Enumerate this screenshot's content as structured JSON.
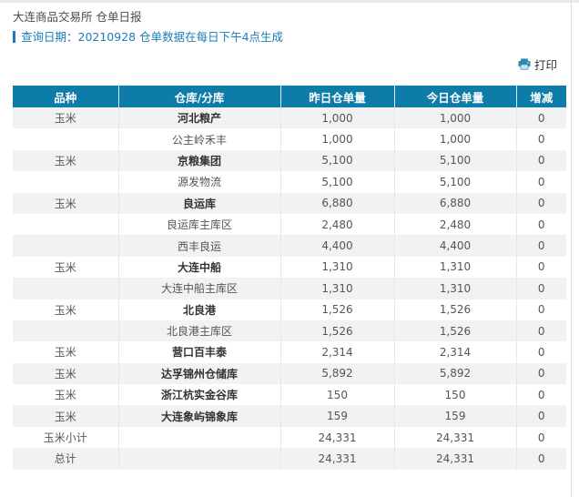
{
  "page": {
    "title": "大连商品交易所 仓单日报",
    "query_line": "查询日期：20210928 仓单数据在每日下午4点生成",
    "print_label": "打印"
  },
  "table": {
    "columns": [
      "品种",
      "仓库/分库",
      "昨日仓单量",
      "今日仓单量",
      "增减"
    ],
    "rows": [
      {
        "variety": "玉米",
        "warehouse": "河北粮产",
        "main": true,
        "yesterday": "1,000",
        "today": "1,000",
        "change": "0"
      },
      {
        "variety": "",
        "warehouse": "公主岭禾丰",
        "main": false,
        "yesterday": "1,000",
        "today": "1,000",
        "change": "0"
      },
      {
        "variety": "玉米",
        "warehouse": "京粮集团",
        "main": true,
        "yesterday": "5,100",
        "today": "5,100",
        "change": "0"
      },
      {
        "variety": "",
        "warehouse": "源发物流",
        "main": false,
        "yesterday": "5,100",
        "today": "5,100",
        "change": "0"
      },
      {
        "variety": "玉米",
        "warehouse": "良运库",
        "main": true,
        "yesterday": "6,880",
        "today": "6,880",
        "change": "0"
      },
      {
        "variety": "",
        "warehouse": "良运库主库区",
        "main": false,
        "yesterday": "2,480",
        "today": "2,480",
        "change": "0"
      },
      {
        "variety": "",
        "warehouse": "西丰良运",
        "main": false,
        "yesterday": "4,400",
        "today": "4,400",
        "change": "0"
      },
      {
        "variety": "玉米",
        "warehouse": "大连中船",
        "main": true,
        "yesterday": "1,310",
        "today": "1,310",
        "change": "0"
      },
      {
        "variety": "",
        "warehouse": "大连中船主库区",
        "main": false,
        "yesterday": "1,310",
        "today": "1,310",
        "change": "0"
      },
      {
        "variety": "玉米",
        "warehouse": "北良港",
        "main": true,
        "yesterday": "1,526",
        "today": "1,526",
        "change": "0"
      },
      {
        "variety": "",
        "warehouse": "北良港主库区",
        "main": false,
        "yesterday": "1,526",
        "today": "1,526",
        "change": "0"
      },
      {
        "variety": "玉米",
        "warehouse": "营口百丰泰",
        "main": true,
        "yesterday": "2,314",
        "today": "2,314",
        "change": "0"
      },
      {
        "variety": "玉米",
        "warehouse": "达孚锦州仓储库",
        "main": true,
        "yesterday": "5,892",
        "today": "5,892",
        "change": "0"
      },
      {
        "variety": "玉米",
        "warehouse": "浙江杭实金谷库",
        "main": true,
        "yesterday": "150",
        "today": "150",
        "change": "0"
      },
      {
        "variety": "玉米",
        "warehouse": "大连象屿锦象库",
        "main": true,
        "yesterday": "159",
        "today": "159",
        "change": "0"
      },
      {
        "variety": "玉米小计",
        "warehouse": "",
        "main": false,
        "yesterday": "24,331",
        "today": "24,331",
        "change": "0"
      },
      {
        "variety": "总计",
        "warehouse": "",
        "main": false,
        "yesterday": "24,331",
        "today": "24,331",
        "change": "0"
      }
    ]
  },
  "colors": {
    "accent": "#1b7cba",
    "header-bg": "#0d7ca8",
    "stripe": "#f0f2f3",
    "edge-line": "#cfe3ed",
    "printer-icon": "#2e86b5"
  }
}
